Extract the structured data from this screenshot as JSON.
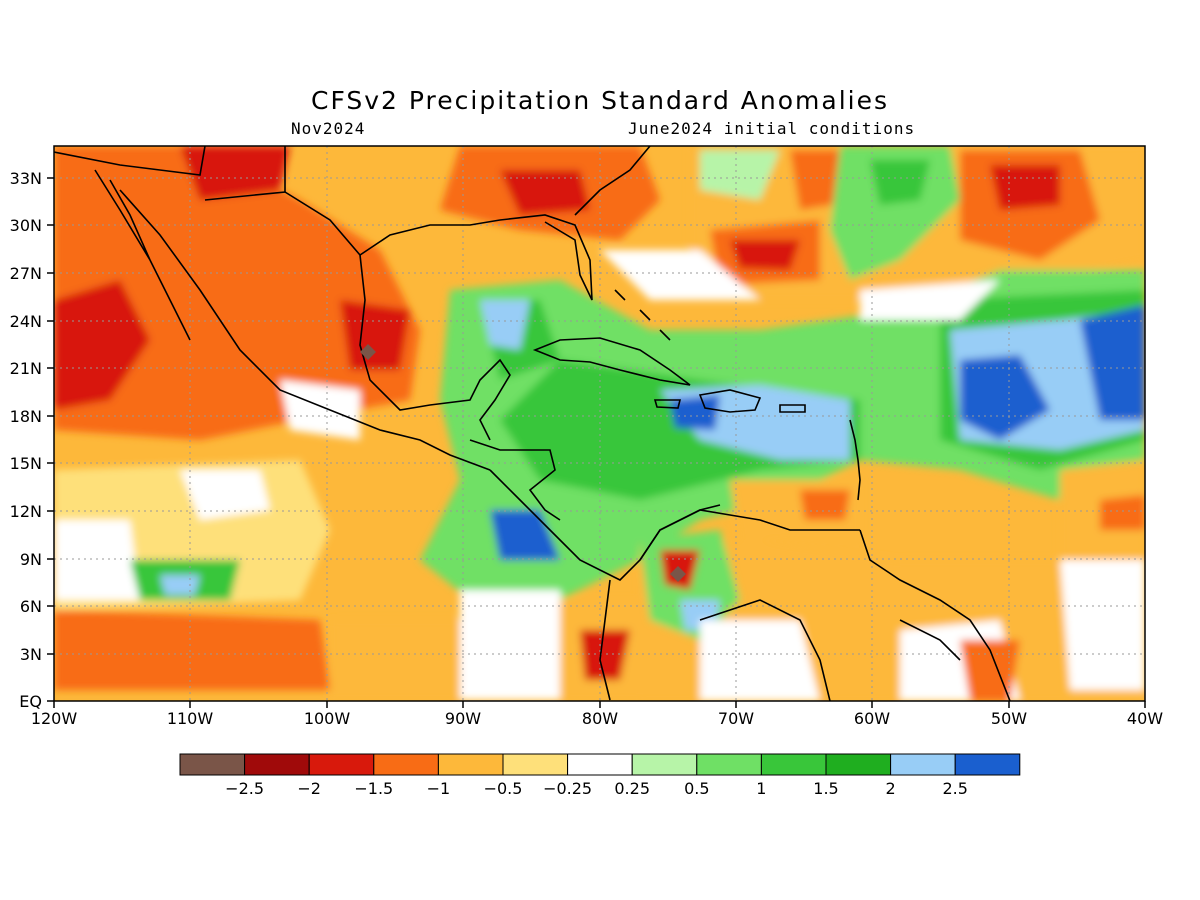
{
  "title": "CFSv2 Precipitation Standard Anomalies",
  "subtitle_left": "Nov2024",
  "subtitle_right": "June2024 initial conditions",
  "map": {
    "lon_range": [
      -120,
      -40
    ],
    "lat_range": [
      0,
      35
    ],
    "x_tick_labels": [
      "120W",
      "110W",
      "100W",
      "90W",
      "80W",
      "70W",
      "60W",
      "50W",
      "40W"
    ],
    "y_tick_labels": [
      "EQ",
      "3N",
      "6N",
      "9N",
      "12N",
      "15N",
      "18N",
      "21N",
      "24N",
      "27N",
      "30N",
      "33N"
    ],
    "grid": "dotted"
  },
  "colorbar": {
    "colors": [
      "#7a5548",
      "#a00a0a",
      "#d8190c",
      "#f86c15",
      "#fdb83a",
      "#fee07a",
      "#ffffff",
      "#b7f4a8",
      "#6fe065",
      "#39c63a",
      "#1fae1f",
      "#98cdf6",
      "#1a5fcf"
    ],
    "labels": [
      "−2.5",
      "−2",
      "−1.5",
      "−1",
      "−0.5",
      "−0.25",
      "0.25",
      "0.5",
      "1",
      "1.5",
      "2",
      "2.5"
    ]
  }
}
